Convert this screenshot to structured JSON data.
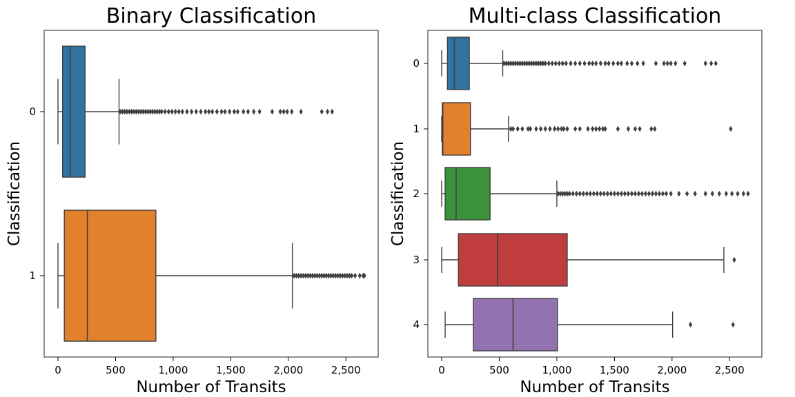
{
  "chart_data": [
    {
      "type": "boxplot",
      "title": "Binary Classification",
      "xlabel": "Number of Transits",
      "ylabel": "Classification",
      "xlim": [
        -120,
        2780
      ],
      "xticks": [
        0,
        500,
        1000,
        1500,
        2000,
        2500
      ],
      "xtick_labels": [
        "0",
        "500",
        "1,000",
        "1,500",
        "2,000",
        "2,500"
      ],
      "orientation": "horizontal",
      "grid": false,
      "boxes": [
        {
          "label": "0",
          "color": "#3274a1",
          "whisker_low": 0,
          "q1": 40,
          "median": 105,
          "q3": 235,
          "whisker_high": 530,
          "outliers": [
            540,
            560,
            580,
            600,
            620,
            640,
            660,
            680,
            700,
            720,
            740,
            760,
            780,
            800,
            820,
            840,
            860,
            880,
            900,
            930,
            960,
            990,
            1020,
            1050,
            1080,
            1120,
            1160,
            1200,
            1240,
            1280,
            1310,
            1340,
            1380,
            1420,
            1450,
            1490,
            1530,
            1560,
            1610,
            1650,
            1700,
            1750,
            1860,
            1930,
            1960,
            1990,
            2030,
            2110,
            2290,
            2340,
            2380
          ]
        },
        {
          "label": "1",
          "color": "#e1812c",
          "whisker_low": 0,
          "q1": 55,
          "median": 255,
          "q3": 850,
          "whisker_high": 2035,
          "outliers": [
            2050,
            2070,
            2090,
            2110,
            2130,
            2150,
            2170,
            2190,
            2210,
            2230,
            2250,
            2270,
            2290,
            2310,
            2330,
            2350,
            2370,
            2390,
            2410,
            2430,
            2450,
            2470,
            2490,
            2510,
            2530,
            2550,
            2580,
            2620,
            2650,
            2660
          ]
        }
      ]
    },
    {
      "type": "boxplot",
      "title": "Multi-class Classification",
      "xlabel": "Number of Transits",
      "ylabel": "Classification",
      "xlim": [
        -120,
        2780
      ],
      "xticks": [
        0,
        500,
        1000,
        1500,
        2000,
        2500
      ],
      "xtick_labels": [
        "0",
        "500",
        "1,000",
        "1,500",
        "2,000",
        "2,500"
      ],
      "orientation": "horizontal",
      "grid": false,
      "boxes": [
        {
          "label": "0",
          "color": "#3274a1",
          "whisker_low": 0,
          "q1": 50,
          "median": 110,
          "q3": 240,
          "whisker_high": 530,
          "outliers": [
            540,
            560,
            580,
            600,
            620,
            640,
            660,
            680,
            700,
            720,
            740,
            760,
            780,
            800,
            820,
            840,
            860,
            880,
            900,
            930,
            960,
            990,
            1020,
            1050,
            1080,
            1120,
            1160,
            1200,
            1240,
            1280,
            1310,
            1340,
            1380,
            1420,
            1450,
            1490,
            1530,
            1560,
            1610,
            1650,
            1700,
            1750,
            1860,
            1930,
            1960,
            1990,
            2030,
            2110,
            2290,
            2340,
            2380
          ]
        },
        {
          "label": "1",
          "color": "#e1812c",
          "whisker_low": 0,
          "q1": 5,
          "median": 10,
          "q3": 250,
          "whisker_high": 580,
          "outliers": [
            600,
            620,
            660,
            700,
            750,
            770,
            820,
            860,
            900,
            940,
            980,
            1010,
            1040,
            1060,
            1090,
            1160,
            1200,
            1270,
            1310,
            1340,
            1370,
            1400,
            1420,
            1530,
            1620,
            1680,
            1720,
            1820,
            1850,
            2510
          ]
        },
        {
          "label": "2",
          "color": "#3a923a",
          "whisker_low": 0,
          "q1": 30,
          "median": 125,
          "q3": 420,
          "whisker_high": 1000,
          "outliers": [
            1010,
            1030,
            1050,
            1070,
            1090,
            1110,
            1140,
            1170,
            1200,
            1230,
            1260,
            1290,
            1320,
            1350,
            1380,
            1410,
            1440,
            1470,
            1500,
            1530,
            1560,
            1590,
            1620,
            1650,
            1680,
            1710,
            1740,
            1770,
            1800,
            1830,
            1860,
            1890,
            1920,
            1950,
            1990,
            2060,
            2130,
            2200,
            2290,
            2350,
            2410,
            2470,
            2520,
            2570,
            2620,
            2660
          ]
        },
        {
          "label": "3",
          "color": "#c03d3e",
          "whisker_low": 0,
          "q1": 145,
          "median": 485,
          "q3": 1090,
          "whisker_high": 2450,
          "outliers": [
            2540
          ]
        },
        {
          "label": "4",
          "color": "#9372b2",
          "whisker_low": 30,
          "q1": 275,
          "median": 620,
          "q3": 1005,
          "whisker_high": 2005,
          "outliers": [
            2160,
            2530
          ]
        }
      ]
    }
  ]
}
